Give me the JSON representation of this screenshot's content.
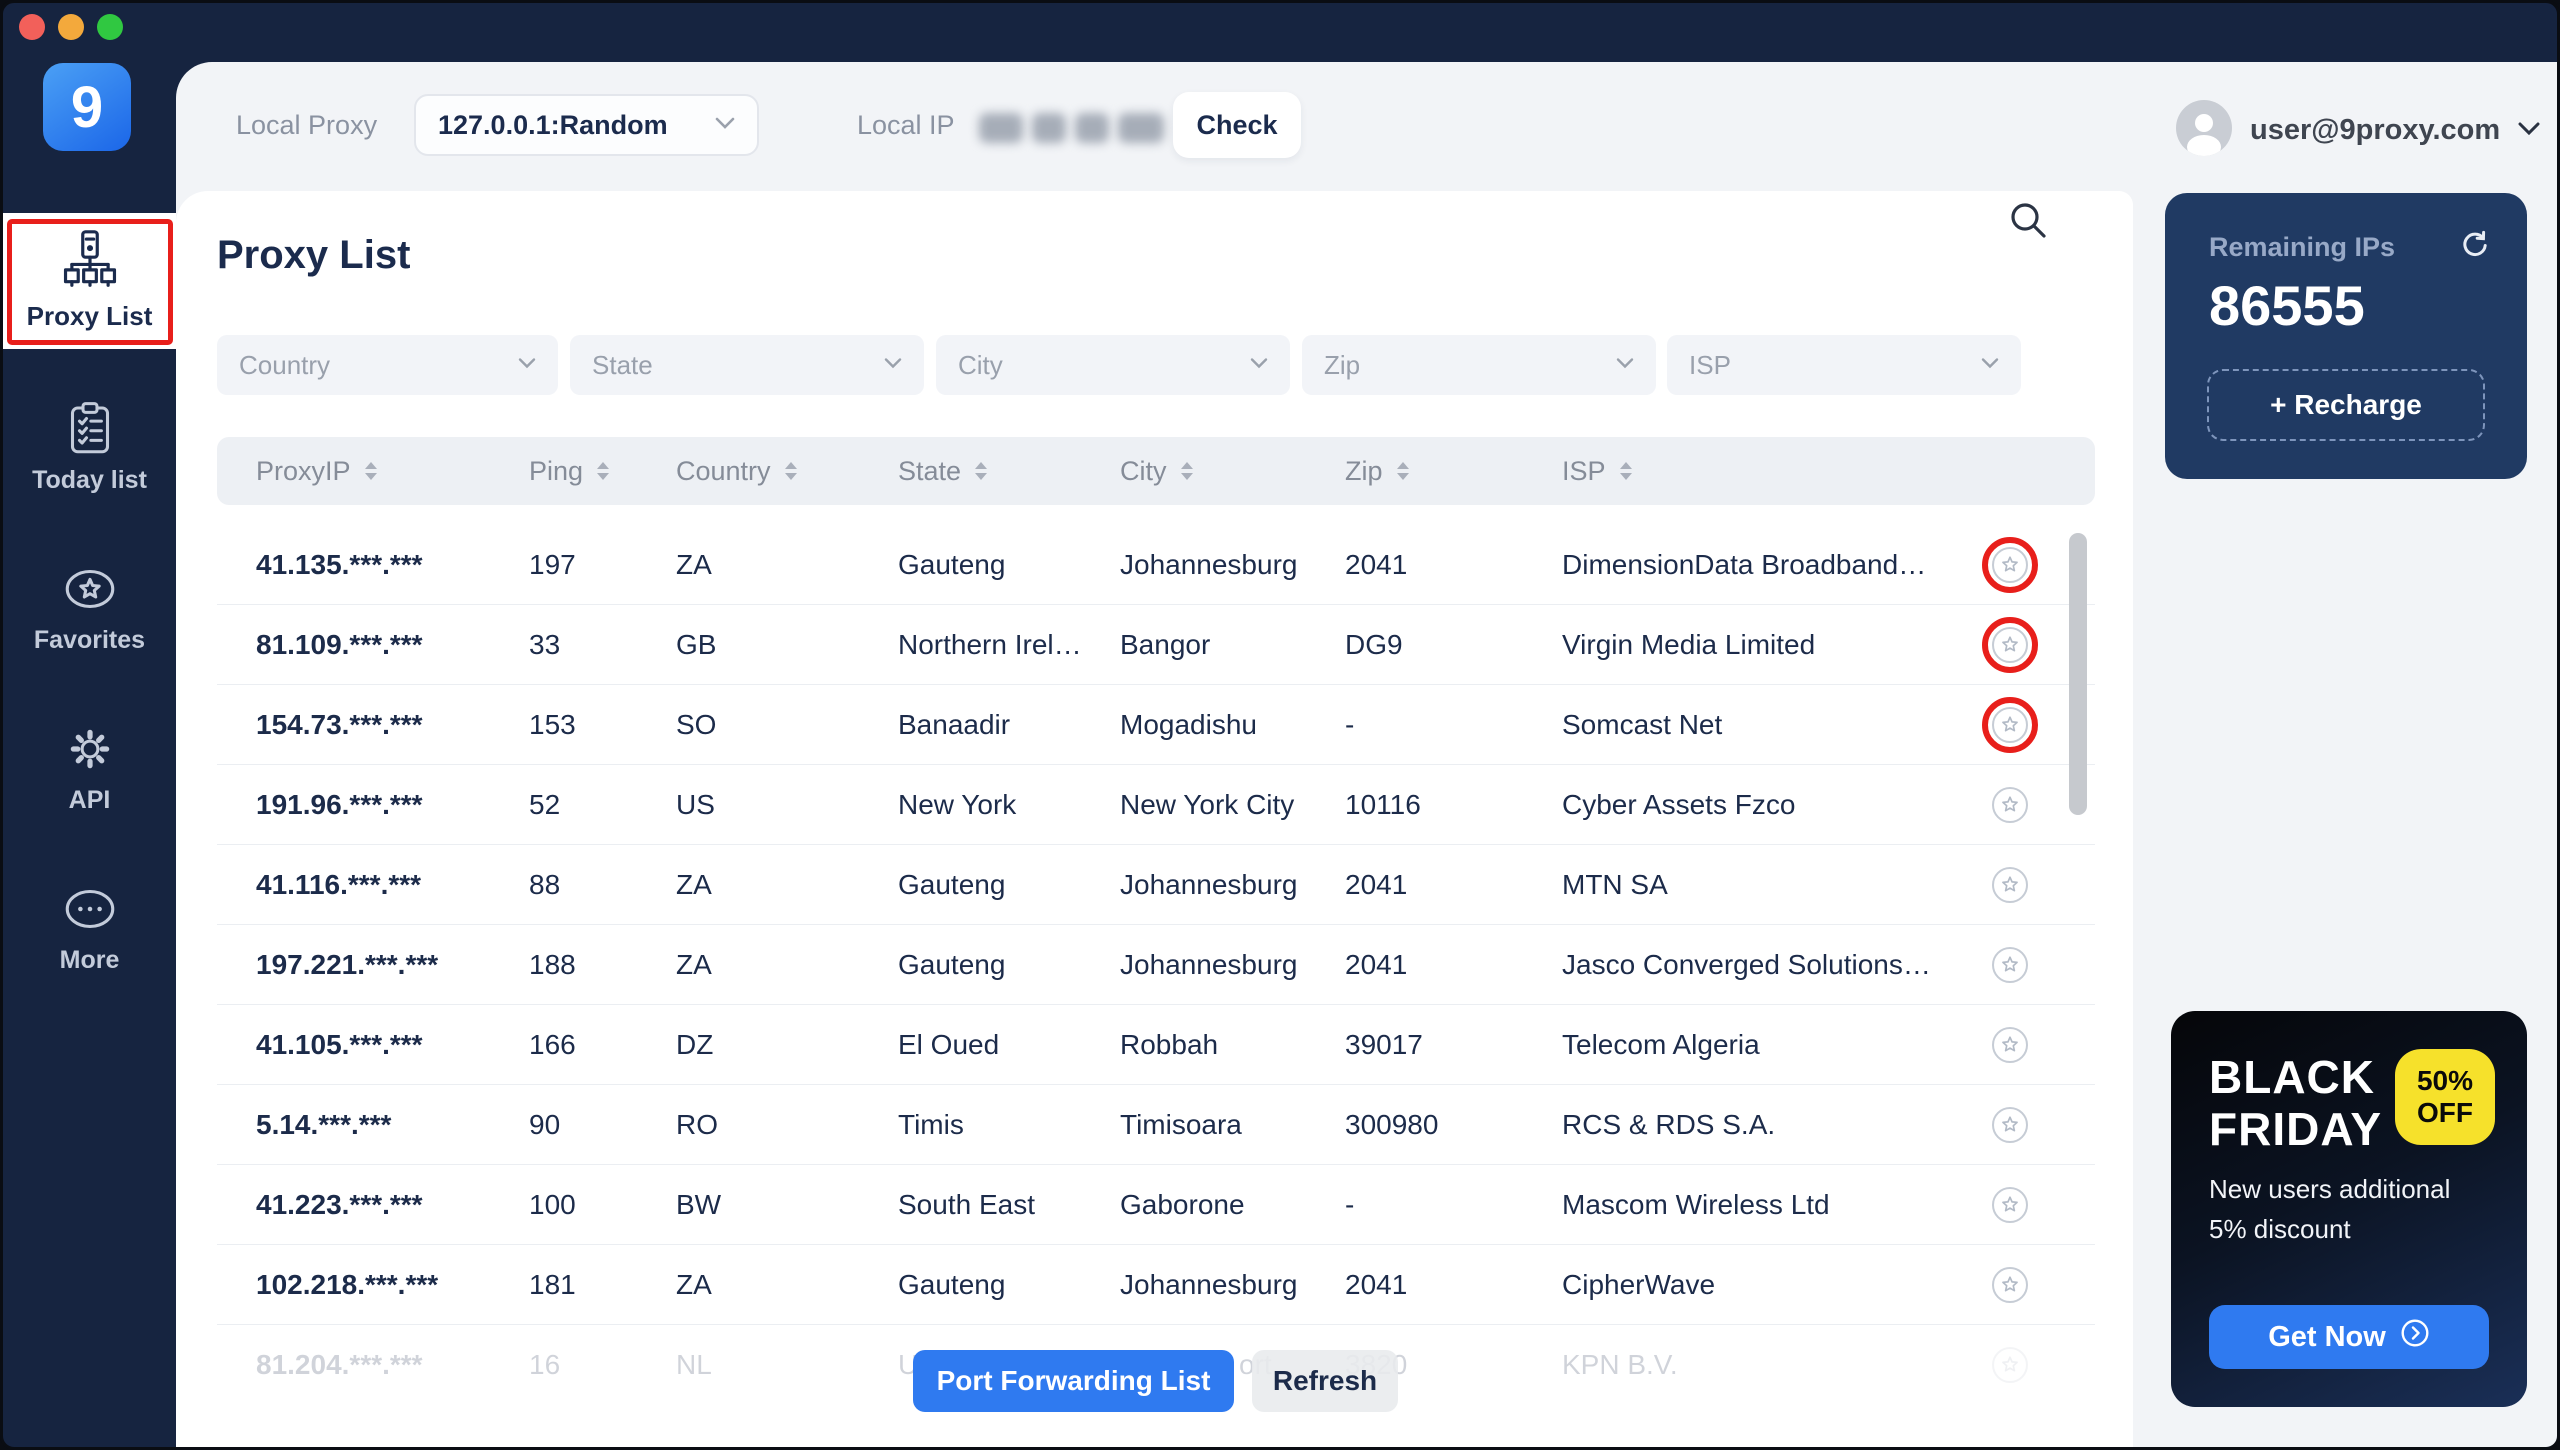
{
  "window": {
    "traffic_lights": [
      {
        "name": "close",
        "color": "#F2605A"
      },
      {
        "name": "minimize",
        "color": "#F3A93C"
      },
      {
        "name": "zoom",
        "color": "#30C841"
      }
    ]
  },
  "sidebar": {
    "logo_text": "9",
    "items": [
      {
        "label": "Proxy List",
        "active": true,
        "annotated": true
      },
      {
        "label": "Today list"
      },
      {
        "label": "Favorites"
      },
      {
        "label": "API"
      },
      {
        "label": "More"
      }
    ]
  },
  "topbar": {
    "local_proxy_label": "Local Proxy",
    "proxy_select_value": "127.0.0.1:Random",
    "local_ip_label": "Local IP",
    "local_ip_redacted": true,
    "check_label": "Check"
  },
  "account": {
    "email": "user@9proxy.com"
  },
  "remaining": {
    "title": "Remaining IPs",
    "count": "86555",
    "recharge_label": "+ Recharge"
  },
  "promo": {
    "title_line1": "BLACK",
    "title_line2": "FRIDAY",
    "badge_line1": "50%",
    "badge_line2": "OFF",
    "body_line1": "New users additional",
    "body_line2": "5% discount",
    "cta_label": "Get Now"
  },
  "main": {
    "title": "Proxy List",
    "filters": [
      {
        "key": "country",
        "label": "Country"
      },
      {
        "key": "state",
        "label": "State"
      },
      {
        "key": "city",
        "label": "City"
      },
      {
        "key": "zip",
        "label": "Zip"
      },
      {
        "key": "isp",
        "label": "ISP"
      }
    ]
  },
  "table": {
    "columns": [
      "ProxyIP",
      "Ping",
      "Country",
      "State",
      "City",
      "Zip",
      "ISP"
    ],
    "rows": [
      {
        "ip": "41.135.***.***",
        "ping": "197",
        "country": "ZA",
        "state": "Gauteng",
        "city": "Johannesburg",
        "zip": "2041",
        "isp": "DimensionData Broadband…",
        "annotated": true
      },
      {
        "ip": "81.109.***.***",
        "ping": "33",
        "country": "GB",
        "state": "Northern Irel…",
        "city": "Bangor",
        "zip": "DG9",
        "isp": "Virgin Media Limited",
        "annotated": true
      },
      {
        "ip": "154.73.***.***",
        "ping": "153",
        "country": "SO",
        "state": "Banaadir",
        "city": "Mogadishu",
        "zip": "-",
        "isp": "Somcast Net",
        "annotated": true
      },
      {
        "ip": "191.96.***.***",
        "ping": "52",
        "country": "US",
        "state": "New York",
        "city": "New York City",
        "zip": "10116",
        "isp": "Cyber Assets Fzco"
      },
      {
        "ip": "41.116.***.***",
        "ping": "88",
        "country": "ZA",
        "state": "Gauteng",
        "city": "Johannesburg",
        "zip": "2041",
        "isp": "MTN SA"
      },
      {
        "ip": "197.221.***.***",
        "ping": "188",
        "country": "ZA",
        "state": "Gauteng",
        "city": "Johannesburg",
        "zip": "2041",
        "isp": "Jasco Converged Solutions…"
      },
      {
        "ip": "41.105.***.***",
        "ping": "166",
        "country": "DZ",
        "state": "El Oued",
        "city": "Robbah",
        "zip": "39017",
        "isp": "Telecom Algeria"
      },
      {
        "ip": "5.14.***.***",
        "ping": "90",
        "country": "RO",
        "state": "Timis",
        "city": "Timisoara",
        "zip": "300980",
        "isp": "RCS & RDS S.A."
      },
      {
        "ip": "41.223.***.***",
        "ping": "100",
        "country": "BW",
        "state": "South East",
        "city": "Gaborone",
        "zip": "-",
        "isp": "Mascom Wireless Ltd"
      },
      {
        "ip": "102.218.***.***",
        "ping": "181",
        "country": "ZA",
        "state": "Gauteng",
        "city": "Johannesburg",
        "zip": "2041",
        "isp": "CipherWave"
      },
      {
        "ip": "81.204.***.***",
        "ping": "16",
        "country": "NL",
        "state": "U",
        "city": "ort",
        "zip": "3820",
        "isp": "KPN B.V.",
        "partial": true
      }
    ]
  },
  "footer": {
    "port_forwarding_label": "Port Forwarding List",
    "refresh_label": "Refresh"
  },
  "colors": {
    "accent_blue": "#2F7AF0",
    "navy": "#162440",
    "card_navy": "#203A63",
    "annotation_red": "#E81F1B",
    "badge_yellow": "#F6E12B"
  }
}
